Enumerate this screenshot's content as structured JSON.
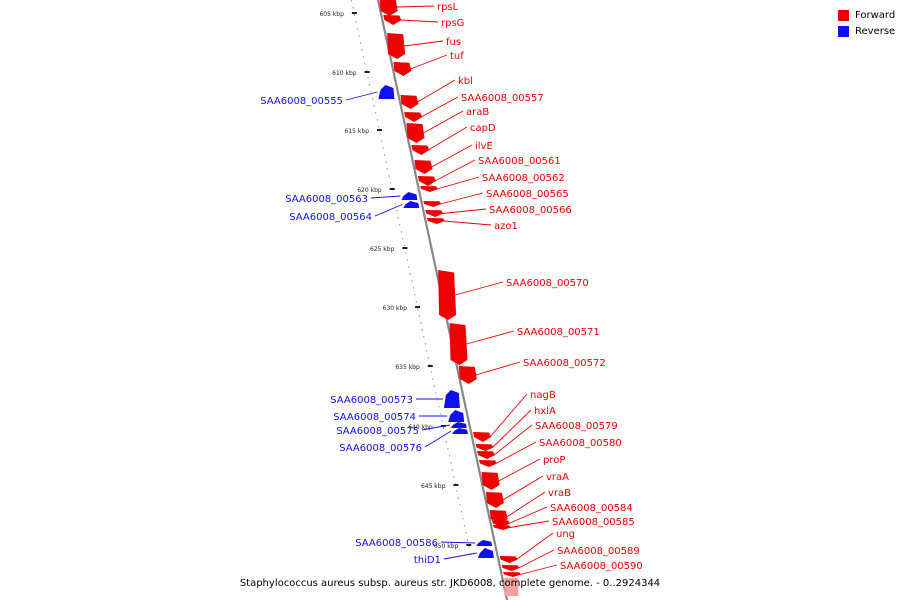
{
  "colors": {
    "forward": "#ee0000",
    "reverse": "#1010ee",
    "axis": "#888888"
  },
  "legend": [
    {
      "label": "Forward",
      "color": "#ee0000"
    },
    {
      "label": "Reverse",
      "color": "#1010ee"
    }
  ],
  "caption": "Staphylococcus aureus subsp. aureus str. JKD6008, complete genome. - 0..2924344",
  "scale_labels": [
    "605 kbp",
    "610 kbp",
    "615 kbp",
    "620 kbp",
    "625 kbp",
    "630 kbp",
    "635 kbp",
    "640 kbp",
    "645 kbp",
    "650 kbp"
  ],
  "forward_genes": [
    "rpsL",
    "rpsG",
    "fus",
    "tuf",
    "kbl",
    "SAA6008_00557",
    "araB",
    "capD",
    "ilvE",
    "SAA6008_00561",
    "SAA6008_00562",
    "SAA6008_00565",
    "SAA6008_00566",
    "azo1",
    "SAA6008_00570",
    "SAA6008_00571",
    "SAA6008_00572",
    "nagB",
    "hxlA",
    "SAA6008_00579",
    "SAA6008_00580",
    "proP",
    "vraA",
    "vraB",
    "SAA6008_00584",
    "SAA6008_00585",
    "ung",
    "SAA6008_00589",
    "SAA6008_00590"
  ],
  "reverse_genes": [
    "SAA6008_00555",
    "SAA6008_00563",
    "SAA6008_00564",
    "SAA6008_00573",
    "SAA6008_00574",
    "SAA6008_00575",
    "SAA6008_00576",
    "SAA6008_00586",
    "thiD1"
  ]
}
